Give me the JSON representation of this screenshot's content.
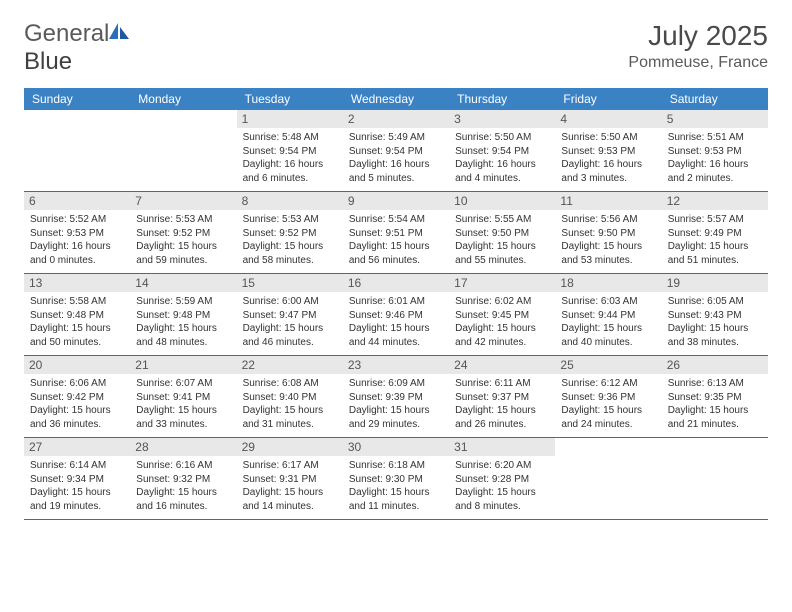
{
  "brand": {
    "part1": "General",
    "part2": "Blue"
  },
  "title": "July 2025",
  "location": "Pommeuse, France",
  "colors": {
    "header_bg": "#3b82c4",
    "header_text": "#ffffff",
    "daynum_bg": "#e8e8e8",
    "week_border": "#3b6ea0",
    "text": "#333333",
    "logo_gray": "#5a5a5a",
    "logo_blue": "#2a6db8"
  },
  "day_names": [
    "Sunday",
    "Monday",
    "Tuesday",
    "Wednesday",
    "Thursday",
    "Friday",
    "Saturday"
  ],
  "weeks": [
    [
      null,
      null,
      {
        "n": "1",
        "r": "5:48 AM",
        "s": "9:54 PM",
        "d": "16 hours and 6 minutes."
      },
      {
        "n": "2",
        "r": "5:49 AM",
        "s": "9:54 PM",
        "d": "16 hours and 5 minutes."
      },
      {
        "n": "3",
        "r": "5:50 AM",
        "s": "9:54 PM",
        "d": "16 hours and 4 minutes."
      },
      {
        "n": "4",
        "r": "5:50 AM",
        "s": "9:53 PM",
        "d": "16 hours and 3 minutes."
      },
      {
        "n": "5",
        "r": "5:51 AM",
        "s": "9:53 PM",
        "d": "16 hours and 2 minutes."
      }
    ],
    [
      {
        "n": "6",
        "r": "5:52 AM",
        "s": "9:53 PM",
        "d": "16 hours and 0 minutes."
      },
      {
        "n": "7",
        "r": "5:53 AM",
        "s": "9:52 PM",
        "d": "15 hours and 59 minutes."
      },
      {
        "n": "8",
        "r": "5:53 AM",
        "s": "9:52 PM",
        "d": "15 hours and 58 minutes."
      },
      {
        "n": "9",
        "r": "5:54 AM",
        "s": "9:51 PM",
        "d": "15 hours and 56 minutes."
      },
      {
        "n": "10",
        "r": "5:55 AM",
        "s": "9:50 PM",
        "d": "15 hours and 55 minutes."
      },
      {
        "n": "11",
        "r": "5:56 AM",
        "s": "9:50 PM",
        "d": "15 hours and 53 minutes."
      },
      {
        "n": "12",
        "r": "5:57 AM",
        "s": "9:49 PM",
        "d": "15 hours and 51 minutes."
      }
    ],
    [
      {
        "n": "13",
        "r": "5:58 AM",
        "s": "9:48 PM",
        "d": "15 hours and 50 minutes."
      },
      {
        "n": "14",
        "r": "5:59 AM",
        "s": "9:48 PM",
        "d": "15 hours and 48 minutes."
      },
      {
        "n": "15",
        "r": "6:00 AM",
        "s": "9:47 PM",
        "d": "15 hours and 46 minutes."
      },
      {
        "n": "16",
        "r": "6:01 AM",
        "s": "9:46 PM",
        "d": "15 hours and 44 minutes."
      },
      {
        "n": "17",
        "r": "6:02 AM",
        "s": "9:45 PM",
        "d": "15 hours and 42 minutes."
      },
      {
        "n": "18",
        "r": "6:03 AM",
        "s": "9:44 PM",
        "d": "15 hours and 40 minutes."
      },
      {
        "n": "19",
        "r": "6:05 AM",
        "s": "9:43 PM",
        "d": "15 hours and 38 minutes."
      }
    ],
    [
      {
        "n": "20",
        "r": "6:06 AM",
        "s": "9:42 PM",
        "d": "15 hours and 36 minutes."
      },
      {
        "n": "21",
        "r": "6:07 AM",
        "s": "9:41 PM",
        "d": "15 hours and 33 minutes."
      },
      {
        "n": "22",
        "r": "6:08 AM",
        "s": "9:40 PM",
        "d": "15 hours and 31 minutes."
      },
      {
        "n": "23",
        "r": "6:09 AM",
        "s": "9:39 PM",
        "d": "15 hours and 29 minutes."
      },
      {
        "n": "24",
        "r": "6:11 AM",
        "s": "9:37 PM",
        "d": "15 hours and 26 minutes."
      },
      {
        "n": "25",
        "r": "6:12 AM",
        "s": "9:36 PM",
        "d": "15 hours and 24 minutes."
      },
      {
        "n": "26",
        "r": "6:13 AM",
        "s": "9:35 PM",
        "d": "15 hours and 21 minutes."
      }
    ],
    [
      {
        "n": "27",
        "r": "6:14 AM",
        "s": "9:34 PM",
        "d": "15 hours and 19 minutes."
      },
      {
        "n": "28",
        "r": "6:16 AM",
        "s": "9:32 PM",
        "d": "15 hours and 16 minutes."
      },
      {
        "n": "29",
        "r": "6:17 AM",
        "s": "9:31 PM",
        "d": "15 hours and 14 minutes."
      },
      {
        "n": "30",
        "r": "6:18 AM",
        "s": "9:30 PM",
        "d": "15 hours and 11 minutes."
      },
      {
        "n": "31",
        "r": "6:20 AM",
        "s": "9:28 PM",
        "d": "15 hours and 8 minutes."
      },
      null,
      null
    ]
  ],
  "labels": {
    "sunrise": "Sunrise: ",
    "sunset": "Sunset: ",
    "daylight": "Daylight: "
  }
}
